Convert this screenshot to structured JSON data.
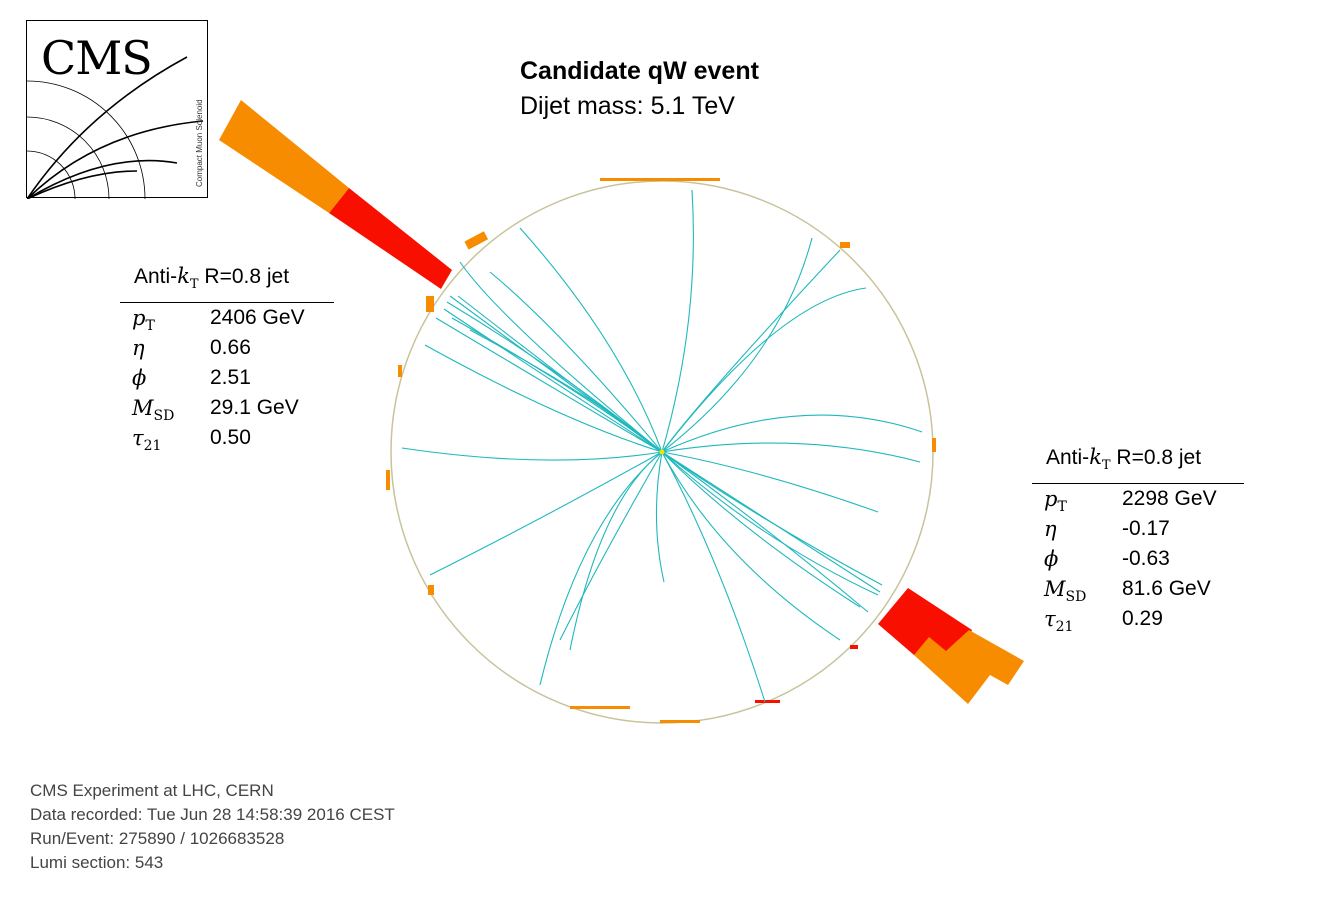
{
  "title": "Candidate qW event",
  "subtitle": "Dijet mass: 5.1 TeV",
  "logo": {
    "wordmark": "CMS",
    "subtitle": "Compact Muon Solenoid"
  },
  "jets": [
    {
      "header_prefix": "Anti-",
      "header_k": "k",
      "header_sub": "T",
      "header_suffix": " R=0.8 jet",
      "rows": [
        {
          "symbol": "p",
          "symbol_sub": "T",
          "value": "2406 GeV"
        },
        {
          "symbol": "η",
          "symbol_sub": "",
          "value": "0.66"
        },
        {
          "symbol": "ϕ",
          "symbol_sub": "",
          "value": "2.51"
        },
        {
          "symbol": "M",
          "symbol_sub": "SD",
          "value": "29.1 GeV"
        },
        {
          "symbol": "τ",
          "symbol_sub": "21",
          "value": "0.50"
        }
      ]
    },
    {
      "header_prefix": "Anti-",
      "header_k": "k",
      "header_sub": "T",
      "header_suffix": " R=0.8 jet",
      "rows": [
        {
          "symbol": "p",
          "symbol_sub": "T",
          "value": "2298 GeV"
        },
        {
          "symbol": "η",
          "symbol_sub": "",
          "value": "-0.17"
        },
        {
          "symbol": "ϕ",
          "symbol_sub": "",
          "value": "-0.63"
        },
        {
          "symbol": "M",
          "symbol_sub": "SD",
          "value": "81.6 GeV"
        },
        {
          "symbol": "τ",
          "symbol_sub": "21",
          "value": "0.29"
        }
      ]
    }
  ],
  "footer": {
    "line1": "CMS Experiment at LHC, CERN",
    "line2": "Data recorded: Tue Jun 28 14:58:39 2016 CEST",
    "line3": "Run/Event: 275890 / 1026683528",
    "line4": "Lumi section: 543"
  },
  "colors": {
    "track": "#1fb8bd",
    "ecal": "#f90f00",
    "hcal": "#f88c00",
    "detector_ring": "#c8c39a"
  }
}
